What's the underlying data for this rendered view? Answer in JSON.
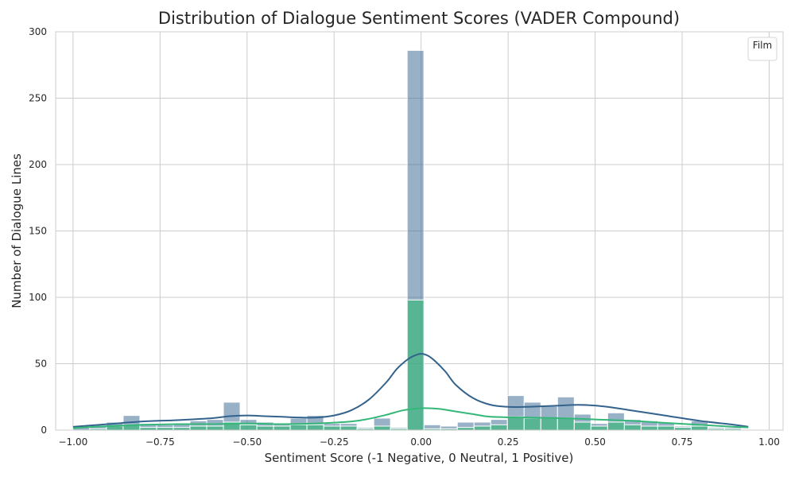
{
  "chart_data": {
    "type": "histogram",
    "title": "Distribution of Dialogue Sentiment Scores (VADER Compound)",
    "xlabel": "Sentiment Score (-1 Negative, 0 Neutral, 1 Positive)",
    "ylabel": "Number of Dialogue Lines",
    "xlim": [
      -1.05,
      1.04
    ],
    "ylim": [
      0,
      300
    ],
    "xticks": [
      -1.0,
      -0.75,
      -0.5,
      -0.25,
      0.0,
      0.25,
      0.5,
      0.75,
      1.0
    ],
    "xtick_labels": [
      "−1.00",
      "−0.75",
      "−0.50",
      "−0.25",
      "0.00",
      "0.25",
      "0.50",
      "0.75",
      "1.00"
    ],
    "yticks": [
      0,
      50,
      100,
      150,
      200,
      250,
      300
    ],
    "ytick_labels": [
      "0",
      "50",
      "100",
      "150",
      "200",
      "250",
      "300"
    ],
    "grid": true,
    "legend": {
      "title": "Film",
      "placement": "top-right",
      "entries": []
    },
    "bin_edges": [
      -1.0,
      -0.952,
      -0.904,
      -0.856,
      -0.808,
      -0.76,
      -0.712,
      -0.664,
      -0.616,
      -0.568,
      -0.52,
      -0.472,
      -0.424,
      -0.376,
      -0.328,
      -0.28,
      -0.232,
      -0.184,
      -0.136,
      -0.088,
      -0.04,
      0.008,
      0.056,
      0.104,
      0.152,
      0.2,
      0.248,
      0.296,
      0.344,
      0.392,
      0.44,
      0.488,
      0.536,
      0.584,
      0.632,
      0.68,
      0.728,
      0.776,
      0.824,
      0.872,
      0.92
    ],
    "series": [
      {
        "color": "#33638d",
        "counts": [
          2,
          3,
          6,
          11,
          5,
          4,
          5,
          7,
          8,
          21,
          8,
          6,
          5,
          9,
          11,
          5,
          5,
          2,
          9,
          2,
          286,
          4,
          3,
          6,
          6,
          8,
          26,
          21,
          18,
          25,
          12,
          5,
          13,
          8,
          7,
          6,
          3,
          7,
          2,
          2
        ],
        "kde_x": [
          -1.0,
          -0.9,
          -0.8,
          -0.7,
          -0.6,
          -0.55,
          -0.5,
          -0.45,
          -0.4,
          -0.35,
          -0.3,
          -0.25,
          -0.2,
          -0.15,
          -0.1,
          -0.07,
          -0.04,
          -0.02,
          0.0,
          0.02,
          0.04,
          0.07,
          0.1,
          0.15,
          0.2,
          0.25,
          0.3,
          0.35,
          0.4,
          0.45,
          0.5,
          0.55,
          0.6,
          0.7,
          0.8,
          0.9,
          0.94
        ],
        "kde_y": [
          2.5,
          4.5,
          6.5,
          7.5,
          9,
          10.5,
          11,
          10.5,
          10,
          9.5,
          9.5,
          11,
          15,
          23,
          36,
          46,
          53,
          56,
          57.5,
          56,
          52,
          44,
          34,
          24,
          19,
          17.5,
          17.5,
          18,
          18.5,
          19,
          18.5,
          17,
          15,
          11,
          7,
          4,
          2.5
        ]
      },
      {
        "color": "#35b779",
        "counts": [
          0,
          1,
          3,
          4,
          2,
          2,
          2,
          3,
          3,
          6,
          4,
          3,
          3,
          4,
          4,
          3,
          3,
          1,
          3,
          1,
          98,
          1,
          1,
          2,
          3,
          4,
          10,
          9,
          9,
          9,
          6,
          3,
          6,
          4,
          3,
          3,
          2,
          3,
          1,
          1
        ],
        "kde_x": [
          -1.0,
          -0.9,
          -0.8,
          -0.7,
          -0.6,
          -0.5,
          -0.4,
          -0.3,
          -0.2,
          -0.15,
          -0.1,
          -0.05,
          0.0,
          0.05,
          0.1,
          0.15,
          0.2,
          0.3,
          0.4,
          0.5,
          0.6,
          0.7,
          0.8,
          0.9,
          0.94
        ],
        "kde_y": [
          1.5,
          3,
          4,
          4.5,
          4.5,
          5,
          4.5,
          5,
          6.5,
          8.5,
          11.5,
          15,
          16.5,
          16,
          14,
          12,
          10,
          9.5,
          9,
          8,
          7,
          5.5,
          4,
          2.5,
          2
        ]
      }
    ]
  }
}
